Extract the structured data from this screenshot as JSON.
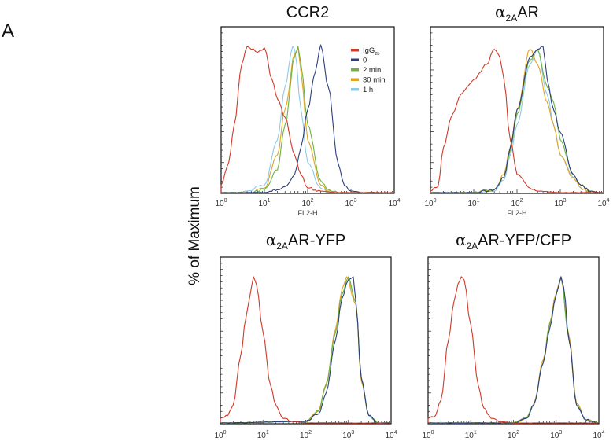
{
  "figure": {
    "panel_letter": "A",
    "ylabel": "% of Maximum"
  },
  "legend": {
    "position": "top-right of first panel",
    "entries": [
      {
        "label": "IgG",
        "sub": "2b",
        "color": "#cf3a2a"
      },
      {
        "label": "0",
        "sub": "",
        "color": "#2d3f7c"
      },
      {
        "label": "2 min",
        "sub": "",
        "color": "#6db33f"
      },
      {
        "label": "30 min",
        "sub": "",
        "color": "#e2a323"
      },
      {
        "label": "1 h",
        "sub": "",
        "color": "#8ec9e8"
      }
    ]
  },
  "chart_data": [
    {
      "type": "line",
      "title": {
        "prefix": "",
        "sub": "",
        "suffix": "CCR2"
      },
      "xlabel": "FL2-H",
      "x_scale": "log",
      "xlim": [
        1,
        10000
      ],
      "x_ticks": [
        {
          "base": "10",
          "exp": "0"
        },
        {
          "base": "10",
          "exp": "1"
        },
        {
          "base": "10",
          "exp": "2"
        },
        {
          "base": "10",
          "exp": "3"
        },
        {
          "base": "10",
          "exp": "4"
        }
      ],
      "ylim": [
        0,
        100
      ],
      "show_legend": true,
      "series": [
        {
          "name": "IgG2b",
          "x": [
            1,
            1.5,
            2,
            3,
            4,
            5,
            7,
            10,
            15,
            20,
            30,
            50,
            70,
            100,
            200,
            500
          ],
          "y": [
            5,
            20,
            45,
            85,
            97,
            95,
            93,
            96,
            75,
            62,
            50,
            25,
            12,
            3,
            1,
            0
          ]
        },
        {
          "name": "0",
          "x": [
            10,
            20,
            30,
            50,
            70,
            100,
            150,
            200,
            300,
            500,
            700,
            1000,
            2000
          ],
          "y": [
            0,
            2,
            4,
            12,
            30,
            55,
            80,
            98,
            70,
            20,
            5,
            1,
            0
          ]
        },
        {
          "name": "2 min",
          "x": [
            5,
            10,
            20,
            30,
            50,
            60,
            70,
            100,
            200,
            300,
            500
          ],
          "y": [
            0,
            2,
            15,
            45,
            90,
            97,
            85,
            45,
            8,
            2,
            0
          ]
        },
        {
          "name": "30 min",
          "x": [
            5,
            10,
            20,
            30,
            50,
            60,
            70,
            100,
            200,
            300,
            500
          ],
          "y": [
            0,
            3,
            25,
            55,
            92,
            96,
            80,
            35,
            5,
            1,
            0
          ]
        },
        {
          "name": "1 h",
          "x": [
            3,
            10,
            20,
            30,
            45,
            50,
            70,
            100,
            200,
            300
          ],
          "y": [
            0,
            5,
            35,
            70,
            97,
            95,
            55,
            20,
            3,
            0
          ]
        }
      ]
    },
    {
      "type": "line",
      "title": {
        "prefix": "α",
        "sub": "2A",
        "suffix": "AR"
      },
      "xlabel": "FL2-H",
      "x_scale": "log",
      "xlim": [
        1,
        10000
      ],
      "x_ticks": [
        {
          "base": "10",
          "exp": "0"
        },
        {
          "base": "10",
          "exp": "1"
        },
        {
          "base": "10",
          "exp": "2"
        },
        {
          "base": "10",
          "exp": "3"
        },
        {
          "base": "10",
          "exp": "4"
        }
      ],
      "ylim": [
        0,
        100
      ],
      "show_legend": false,
      "series": [
        {
          "name": "IgG2b",
          "x": [
            1,
            1.5,
            2,
            3,
            5,
            7,
            10,
            20,
            30,
            40,
            50,
            70,
            100,
            200,
            300,
            1000
          ],
          "y": [
            1,
            4,
            30,
            50,
            65,
            70,
            75,
            85,
            95,
            90,
            75,
            35,
            12,
            3,
            1,
            0
          ]
        },
        {
          "name": "0",
          "x": [
            10,
            30,
            50,
            70,
            100,
            200,
            300,
            400,
            500,
            700,
            1000,
            2000,
            3000,
            5000,
            8000
          ],
          "y": [
            0,
            2,
            10,
            30,
            55,
            90,
            95,
            97,
            75,
            55,
            40,
            12,
            5,
            1,
            0
          ]
        },
        {
          "name": "2 min",
          "x": [
            10,
            30,
            50,
            70,
            100,
            200,
            300,
            500,
            700,
            1000,
            2000,
            3000,
            5000,
            8000
          ],
          "y": [
            0,
            2,
            10,
            28,
            52,
            88,
            95,
            70,
            60,
            35,
            12,
            5,
            1,
            0
          ]
        },
        {
          "name": "30 min",
          "x": [
            10,
            30,
            50,
            70,
            100,
            200,
            300,
            500,
            700,
            1000,
            2000,
            3000,
            5000
          ],
          "y": [
            0,
            2,
            12,
            30,
            55,
            95,
            85,
            60,
            45,
            25,
            10,
            3,
            0
          ]
        },
        {
          "name": "1 h",
          "x": [
            10,
            30,
            50,
            70,
            100,
            200,
            300,
            500,
            700,
            1000,
            2000,
            3000,
            5000
          ],
          "y": [
            0,
            1,
            8,
            25,
            45,
            85,
            95,
            65,
            45,
            25,
            10,
            3,
            0
          ]
        }
      ]
    },
    {
      "type": "line",
      "title": {
        "prefix": "α",
        "sub": "2A",
        "suffix": "AR-YFP"
      },
      "xlabel": "",
      "x_scale": "log",
      "xlim": [
        1,
        10000
      ],
      "x_ticks": [
        {
          "base": "10",
          "exp": "0"
        },
        {
          "base": "10",
          "exp": "1"
        },
        {
          "base": "10",
          "exp": "2"
        },
        {
          "base": "10",
          "exp": "3"
        },
        {
          "base": "10",
          "exp": "4"
        }
      ],
      "ylim": [
        0,
        100
      ],
      "show_legend": false,
      "series": [
        {
          "name": "IgG2b",
          "x": [
            1,
            1.5,
            2,
            3,
            4,
            5,
            6,
            7,
            10,
            15,
            20,
            30,
            50,
            100
          ],
          "y": [
            3,
            5,
            12,
            45,
            70,
            85,
            97,
            92,
            60,
            25,
            12,
            3,
            1,
            0
          ]
        },
        {
          "name": "0",
          "x": [
            100,
            200,
            300,
            500,
            700,
            1000,
            1300,
            1500,
            2000,
            3000,
            5000
          ],
          "y": [
            1,
            6,
            20,
            55,
            82,
            95,
            97,
            80,
            30,
            5,
            0
          ]
        },
        {
          "name": "2 min",
          "x": [
            100,
            200,
            300,
            500,
            700,
            1000,
            1500,
            2000,
            3000,
            5000
          ],
          "y": [
            1,
            8,
            25,
            60,
            85,
            97,
            80,
            30,
            5,
            0
          ]
        },
        {
          "name": "30 min",
          "x": [
            100,
            200,
            300,
            500,
            700,
            900,
            1500,
            2000,
            3000,
            5000
          ],
          "y": [
            1,
            8,
            26,
            62,
            88,
            97,
            78,
            28,
            5,
            0
          ]
        },
        {
          "name": "1 h",
          "x": [
            100,
            200,
            300,
            500,
            700,
            1000,
            1500,
            2000,
            3000,
            5000
          ],
          "y": [
            1,
            8,
            25,
            60,
            85,
            95,
            80,
            30,
            5,
            0
          ]
        }
      ]
    },
    {
      "type": "line",
      "title": {
        "prefix": "α",
        "sub": "2A",
        "suffix": "AR-YFP/CFP"
      },
      "xlabel": "",
      "x_scale": "log",
      "xlim": [
        1,
        10000
      ],
      "x_ticks": [
        {
          "base": "10",
          "exp": "0"
        },
        {
          "base": "10",
          "exp": "1"
        },
        {
          "base": "10",
          "exp": "2"
        },
        {
          "base": "10",
          "exp": "3"
        },
        {
          "base": "10",
          "exp": "4"
        }
      ],
      "ylim": [
        0,
        100
      ],
      "show_legend": false,
      "series": [
        {
          "name": "IgG2b",
          "x": [
            1,
            1.5,
            2,
            3,
            4,
            5,
            6,
            7,
            10,
            15,
            20,
            30,
            50,
            100
          ],
          "y": [
            3,
            5,
            15,
            55,
            80,
            92,
            97,
            95,
            65,
            25,
            10,
            3,
            1,
            0
          ]
        },
        {
          "name": "0",
          "x": [
            100,
            200,
            300,
            500,
            700,
            1000,
            1300,
            1500,
            2000,
            3000,
            5000
          ],
          "y": [
            0,
            3,
            12,
            40,
            62,
            85,
            97,
            90,
            55,
            12,
            2
          ]
        },
        {
          "name": "2 min",
          "x": [
            100,
            200,
            300,
            500,
            700,
            1000,
            1300,
            2000,
            3000,
            5000
          ],
          "y": [
            0,
            3,
            12,
            40,
            65,
            85,
            97,
            55,
            12,
            2
          ]
        },
        {
          "name": "30 min",
          "x": [
            100,
            200,
            300,
            500,
            700,
            1000,
            1300,
            2000,
            3000,
            5000
          ],
          "y": [
            0,
            3,
            13,
            42,
            66,
            86,
            96,
            58,
            13,
            2
          ]
        },
        {
          "name": "1 h",
          "x": [
            100,
            200,
            300,
            500,
            700,
            1000,
            1300,
            2000,
            3000,
            5000
          ],
          "y": [
            0,
            3,
            12,
            40,
            65,
            85,
            97,
            55,
            12,
            2
          ]
        }
      ]
    }
  ]
}
